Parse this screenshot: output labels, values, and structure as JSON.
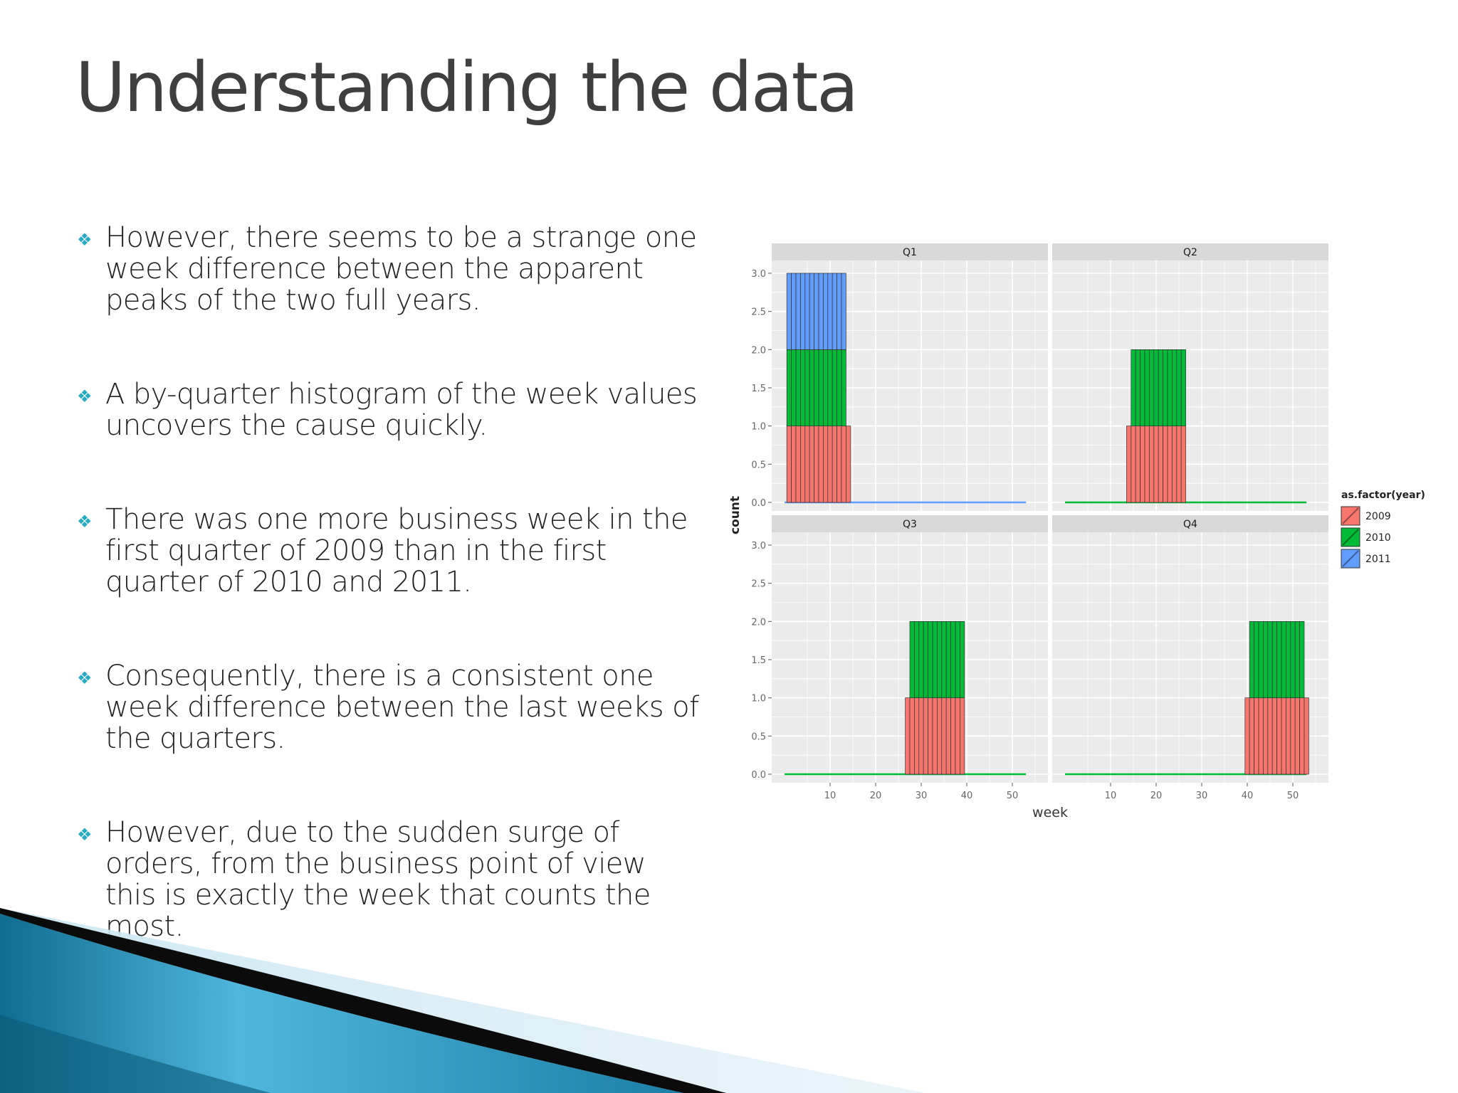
{
  "slide": {
    "title": "Understanding the data",
    "bullet_icon": "diamond-bullet-icon",
    "accent_color": "#2aa9c4",
    "bullets": [
      "However, there seems to be a strange one week difference between the apparent peaks of the two full years.",
      "A by-quarter histogram of the week values uncovers the cause quickly.",
      "There was one more business week in the first quarter of 2009 than in the first quarter of 2010 and 2011.",
      "Consequently, there is a consistent one week difference between the last weeks of the quarters.",
      "However, due to the sudden surge of orders, from the business point of view this is exactly the week that counts the most."
    ]
  },
  "chart_data": {
    "type": "bar",
    "stacked": true,
    "xlabel": "week",
    "ylabel": "count",
    "ylim": [
      0,
      3.0
    ],
    "y_ticks": [
      "0.0",
      "0.5",
      "1.0",
      "1.5",
      "2.0",
      "2.5",
      "3.0"
    ],
    "xlim": [
      0,
      55
    ],
    "x_ticks": [
      "10",
      "20",
      "30",
      "40",
      "50"
    ],
    "legend": {
      "title": "as.factor(year)",
      "placement": "right",
      "entries": [
        {
          "name": "2009",
          "color": "#f8766d"
        },
        {
          "name": "2010",
          "color": "#00ba38"
        },
        {
          "name": "2011",
          "color": "#619cff"
        }
      ]
    },
    "grid": true,
    "facets": [
      {
        "label": "Q1",
        "series": [
          {
            "name": "2009",
            "weeks": [
              1,
              14
            ],
            "value": 1
          },
          {
            "name": "2010",
            "weeks": [
              1,
              13
            ],
            "value": 1
          },
          {
            "name": "2011",
            "weeks": [
              1,
              13
            ],
            "value": 1
          }
        ]
      },
      {
        "label": "Q2",
        "series": [
          {
            "name": "2009",
            "weeks": [
              14,
              26
            ],
            "value": 1
          },
          {
            "name": "2010",
            "weeks": [
              15,
              26
            ],
            "value": 1
          }
        ]
      },
      {
        "label": "Q3",
        "series": [
          {
            "name": "2009",
            "weeks": [
              27,
              39
            ],
            "value": 1
          },
          {
            "name": "2010",
            "weeks": [
              28,
              39
            ],
            "value": 1
          }
        ]
      },
      {
        "label": "Q4",
        "series": [
          {
            "name": "2009",
            "weeks": [
              40,
              53
            ],
            "value": 1
          },
          {
            "name": "2010",
            "weeks": [
              41,
              52
            ],
            "value": 1
          }
        ]
      }
    ]
  }
}
